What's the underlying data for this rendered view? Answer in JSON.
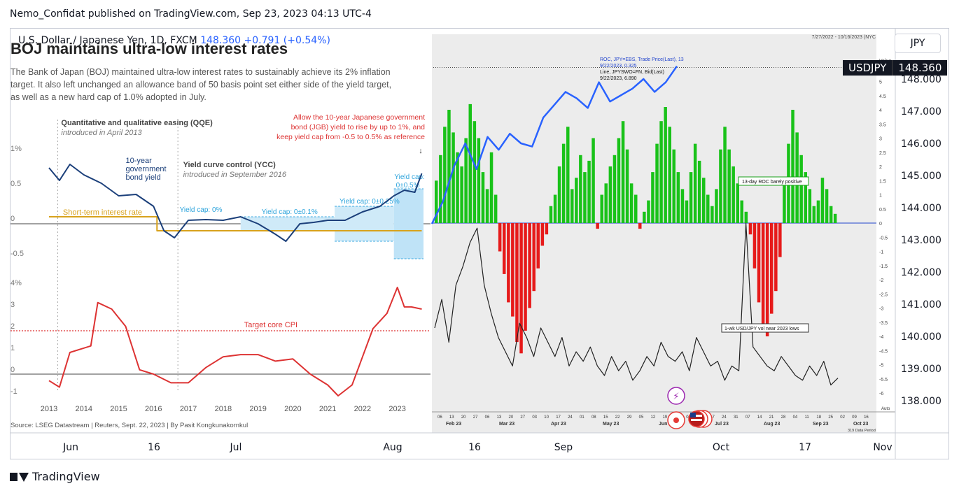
{
  "header": {
    "text": "Nemo_Confidat published on TradingView.com, Sep 23, 2023 04:13 UTC-4"
  },
  "instrument": {
    "name": "U.S. Dollar / Japanese Yen, 1D, FXCM",
    "price": "148.360",
    "change": "+0.791 (+0.54%)"
  },
  "ticker_box": {
    "label": "JPY"
  },
  "price_tag": {
    "symbol": "USDJPY",
    "value": "148.360"
  },
  "footer": {
    "brand": "TradingView"
  },
  "main_axis": {
    "y_labels": [
      "148.000",
      "147.000",
      "146.000",
      "145.000",
      "144.000",
      "143.000",
      "142.000",
      "141.000",
      "140.000",
      "139.000",
      "138.000"
    ],
    "x_labels": [
      "Jun",
      "16",
      "Jul",
      "Aug",
      "16",
      "Sep",
      "Oct",
      "17",
      "Nov"
    ]
  },
  "infographic": {
    "title": "BOJ maintains ultra-low interest rates",
    "desc_lines": [
      "The Bank of Japan (BOJ) maintained ultra-low interest rates to sustainably achieve its 2% inflation",
      "target. It also left unchanged an allowance band of 50 basis point set either side of the yield target,",
      "as well as a new hard cap of 1.0% adopted in July."
    ],
    "qqe_title": "Quantitative and qualitative easing (QQE)",
    "qqe_sub": "introduced in April 2013",
    "ycc_title": "Yield curve control (YCC)",
    "ycc_sub": "introduced in September 2016",
    "annotation_lines": [
      "Allow the 10-year Japanese government",
      "bond (JGB) yield to rise by up to 1%, and",
      "keep yield cap from -0.5 to 0.5% as reference"
    ],
    "jgb_label_lines": [
      "10-year",
      "government",
      "bond yield"
    ],
    "short_rate_label": "Short-term interest rate",
    "yield_caps": [
      "Yield cap: 0%",
      "Yield cap: 0±0.1%",
      "Yield cap: 0±0.25%",
      "Yield cap:",
      "0±0.5%"
    ],
    "top_y_labels": [
      "1%",
      "0.5",
      "0",
      "-0.5"
    ],
    "bottom_y_labels": [
      "4%",
      "3",
      "2",
      "1",
      "0",
      "-1"
    ],
    "x_years": [
      "2013",
      "2014",
      "2015",
      "2016",
      "2017",
      "2018",
      "2019",
      "2020",
      "2021",
      "2022",
      "2023"
    ],
    "target_cpi_label": "Target core CPI",
    "source": "Source: LSEG Datastream | Reuters, Sept. 22, 2023 | By Pasit Kongkunakornkul"
  },
  "roc_panel": {
    "date_range": "7/27/2022 - 10/16/2023 (NYC",
    "value_label": "Value",
    "legend_lines": [
      "ROC, JPY=EBS, Trade Price(Last), 13",
      "9/22/2023, 0.325",
      "Line, JPYSWO=FN, Bid(Last)",
      "9/22/2023, 6.890"
    ],
    "roc_note": "13-day ROC barely positive",
    "vol_note": "1-wk USD/JPY vol near 2023 lows",
    "right_axis": [
      "5",
      "4.5",
      "4",
      "3.5",
      "3",
      "2.5",
      "2",
      "1.5",
      "1",
      "0.5",
      "0",
      "-0.5",
      "-1",
      "-1.5",
      "-2",
      "-2.5",
      "-3",
      "-3.5",
      "-4",
      "-4.5",
      "-5",
      "-5.5",
      "-6"
    ],
    "x_days": [
      "06",
      "13",
      "20",
      "27",
      "06",
      "13",
      "20",
      "27",
      "03",
      "10",
      "17",
      "24",
      "01",
      "08",
      "15",
      "22",
      "29",
      "05",
      "12",
      "19",
      "26",
      "03",
      "10",
      "17",
      "24",
      "31",
      "07",
      "14",
      "21",
      "28",
      "04",
      "11",
      "18",
      "25",
      "02",
      "09",
      "16"
    ],
    "months": [
      "Feb 23",
      "Mar 23",
      "Apr 23",
      "May 23",
      "Jun",
      "Jul 23",
      "Aug 23",
      "Sep 23",
      "Oct 23"
    ],
    "scale_label": "Auto",
    "data_period": "319 Data Period"
  },
  "chart_data": [
    {
      "type": "line",
      "title": "BOJ maintains ultra-low interest rates",
      "series": [
        {
          "name": "10-year government bond yield",
          "x": [
            2013.0,
            2013.3,
            2013.6,
            2014.0,
            2014.5,
            2015.0,
            2015.5,
            2016.0,
            2016.3,
            2016.6,
            2017.0,
            2017.5,
            2018.0,
            2018.5,
            2019.0,
            2019.5,
            2019.8,
            2020.2,
            2020.6,
            2021.0,
            2021.5,
            2022.0,
            2022.5,
            2022.9,
            2023.2,
            2023.5,
            2023.7
          ],
          "values": [
            0.8,
            0.62,
            0.85,
            0.7,
            0.58,
            0.4,
            0.42,
            0.25,
            -0.1,
            -0.2,
            0.05,
            0.06,
            0.05,
            0.1,
            0.0,
            -0.15,
            -0.25,
            0.0,
            0.02,
            0.05,
            0.05,
            0.17,
            0.25,
            0.4,
            0.48,
            0.45,
            0.72
          ]
        },
        {
          "name": "Short-term interest rate",
          "x": [
            2013.0,
            2016.1,
            2016.1,
            2023.7
          ],
          "values": [
            0.1,
            0.1,
            -0.1,
            -0.1
          ]
        }
      ],
      "ylim": [
        -0.5,
        1.0
      ]
    },
    {
      "type": "line",
      "series": [
        {
          "name": "Core CPI",
          "x": [
            2013.0,
            2013.3,
            2013.6,
            2014.2,
            2014.4,
            2014.8,
            2015.2,
            2015.6,
            2016.0,
            2016.5,
            2017.0,
            2017.5,
            2018.0,
            2018.5,
            2019.0,
            2019.5,
            2020.0,
            2020.5,
            2021.0,
            2021.3,
            2021.7,
            2022.0,
            2022.3,
            2022.7,
            2023.0,
            2023.2,
            2023.4,
            2023.7
          ],
          "values": [
            -0.3,
            -0.6,
            1.0,
            1.3,
            3.3,
            3.0,
            2.2,
            0.2,
            0.0,
            -0.4,
            -0.4,
            0.3,
            0.8,
            0.9,
            0.9,
            0.6,
            0.7,
            0.0,
            -0.5,
            -1.0,
            -0.5,
            0.8,
            2.1,
            2.8,
            4.0,
            3.1,
            3.1,
            3.0
          ]
        }
      ],
      "target": 2,
      "ylim": [
        -1,
        4
      ]
    },
    {
      "type": "bar",
      "title": "ROC, JPY=EBS, Trade Price(Last), 13",
      "values": [
        1.5,
        2.4,
        3.4,
        4.0,
        3.2,
        2.5,
        2.0,
        3.0,
        4.2,
        3.6,
        3.0,
        1.8,
        1.2,
        2.5,
        1.0,
        -1.0,
        -1.8,
        -2.8,
        -3.3,
        -4.2,
        -4.6,
        -3.8,
        -3.0,
        -2.4,
        -1.6,
        -0.8,
        -0.4,
        0.6,
        1.0,
        2.0,
        2.8,
        3.4,
        1.2,
        1.6,
        2.4,
        1.8,
        2.2,
        3.0,
        -0.2,
        1.0,
        1.4,
        2.0,
        2.4,
        3.0,
        3.6,
        2.6,
        1.4,
        1.0,
        -0.2,
        0.4,
        0.8,
        1.8,
        2.8,
        3.6,
        4.1,
        3.4,
        2.6,
        1.8,
        1.2,
        0.8,
        1.8,
        2.8,
        2.2,
        1.6,
        1.0,
        0.6,
        1.2,
        2.6,
        3.4,
        2.6,
        2.0,
        1.4,
        0.8,
        0.4,
        -0.4,
        -1.6,
        -2.8,
        -3.6,
        -4.0,
        -3.2,
        -2.4,
        -1.2,
        1.6,
        2.8,
        4.0,
        3.2,
        2.4,
        1.8,
        1.2,
        0.6,
        0.8,
        1.6,
        1.2,
        0.6,
        0.325
      ],
      "ylim": [
        -6,
        5
      ]
    },
    {
      "type": "line",
      "title": "Line, JPYSWO=FN, Bid(Last)",
      "values": [
        9.0,
        10.2,
        8.4,
        10.8,
        11.6,
        12.6,
        13.2,
        10.8,
        9.6,
        8.6,
        8.0,
        7.4,
        9.2,
        8.6,
        7.8,
        9.0,
        8.4,
        7.8,
        8.6,
        7.4,
        8.0,
        7.6,
        8.2,
        7.4,
        7.0,
        7.8,
        7.2,
        7.6,
        6.8,
        7.2,
        7.8,
        7.4,
        8.4,
        7.8,
        7.6,
        8.0,
        7.2,
        8.6,
        8.0,
        7.4,
        7.6,
        6.8,
        7.4,
        7.2,
        13.4,
        8.2,
        7.8,
        7.4,
        7.2,
        7.8,
        7.4,
        7.0,
        6.8,
        7.4,
        7.0,
        7.6,
        6.6,
        6.89
      ],
      "ylim": [
        6,
        14
      ]
    },
    {
      "type": "line",
      "title": "U.S. Dollar / Japanese Yen, 1D, FXCM",
      "values": [
        143.5,
        144.2,
        145.3,
        146.0,
        145.2,
        146.2,
        145.8,
        146.3,
        146.0,
        145.9,
        146.8,
        147.2,
        147.6,
        147.4,
        147.1,
        147.9,
        147.3,
        147.5,
        147.7,
        148.0,
        147.6,
        147.9,
        148.4
      ],
      "ylim": [
        138.0,
        148.4
      ]
    }
  ]
}
